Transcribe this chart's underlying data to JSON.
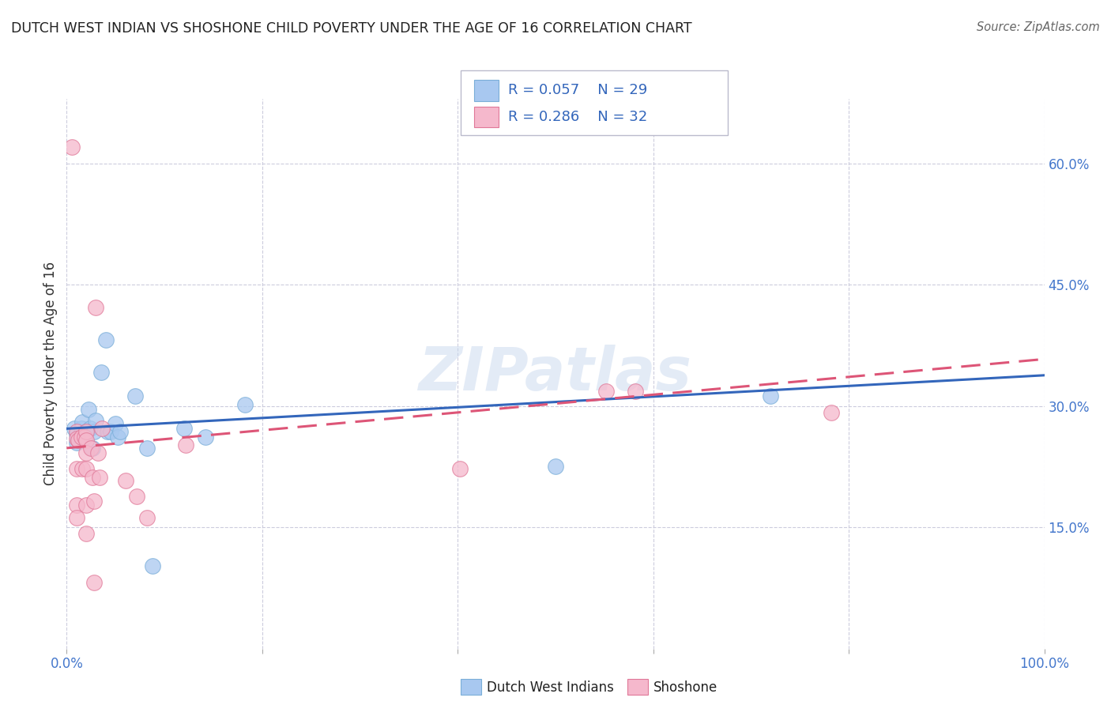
{
  "title": "DUTCH WEST INDIAN VS SHOSHONE CHILD POVERTY UNDER THE AGE OF 16 CORRELATION CHART",
  "source": "Source: ZipAtlas.com",
  "ylabel": "Child Poverty Under the Age of 16",
  "xlim": [
    0,
    1.0
  ],
  "ylim": [
    0,
    0.68
  ],
  "legend_r_blue": "0.057",
  "legend_n_blue": "29",
  "legend_r_pink": "0.286",
  "legend_n_pink": "32",
  "watermark": "ZIPatlas",
  "blue_color": "#a8c8f0",
  "blue_edge": "#7aaed8",
  "pink_color": "#f5b8cc",
  "pink_edge": "#e07898",
  "blue_scatter": [
    [
      0.008,
      0.272
    ],
    [
      0.01,
      0.265
    ],
    [
      0.01,
      0.255
    ],
    [
      0.012,
      0.26
    ],
    [
      0.013,
      0.258
    ],
    [
      0.015,
      0.272
    ],
    [
      0.016,
      0.28
    ],
    [
      0.018,
      0.262
    ],
    [
      0.02,
      0.268
    ],
    [
      0.022,
      0.296
    ],
    [
      0.024,
      0.272
    ],
    [
      0.026,
      0.248
    ],
    [
      0.028,
      0.268
    ],
    [
      0.03,
      0.282
    ],
    [
      0.035,
      0.342
    ],
    [
      0.04,
      0.382
    ],
    [
      0.042,
      0.268
    ],
    [
      0.045,
      0.268
    ],
    [
      0.05,
      0.278
    ],
    [
      0.052,
      0.262
    ],
    [
      0.055,
      0.268
    ],
    [
      0.07,
      0.312
    ],
    [
      0.082,
      0.248
    ],
    [
      0.088,
      0.102
    ],
    [
      0.12,
      0.272
    ],
    [
      0.142,
      0.262
    ],
    [
      0.182,
      0.302
    ],
    [
      0.5,
      0.225
    ],
    [
      0.72,
      0.312
    ]
  ],
  "pink_scatter": [
    [
      0.005,
      0.62
    ],
    [
      0.01,
      0.268
    ],
    [
      0.01,
      0.26
    ],
    [
      0.01,
      0.222
    ],
    [
      0.01,
      0.178
    ],
    [
      0.01,
      0.162
    ],
    [
      0.012,
      0.258
    ],
    [
      0.015,
      0.262
    ],
    [
      0.016,
      0.222
    ],
    [
      0.018,
      0.262
    ],
    [
      0.02,
      0.268
    ],
    [
      0.02,
      0.258
    ],
    [
      0.02,
      0.242
    ],
    [
      0.02,
      0.222
    ],
    [
      0.02,
      0.178
    ],
    [
      0.02,
      0.142
    ],
    [
      0.025,
      0.248
    ],
    [
      0.026,
      0.212
    ],
    [
      0.028,
      0.182
    ],
    [
      0.028,
      0.082
    ],
    [
      0.03,
      0.422
    ],
    [
      0.032,
      0.242
    ],
    [
      0.034,
      0.212
    ],
    [
      0.036,
      0.272
    ],
    [
      0.06,
      0.208
    ],
    [
      0.072,
      0.188
    ],
    [
      0.082,
      0.162
    ],
    [
      0.122,
      0.252
    ],
    [
      0.402,
      0.222
    ],
    [
      0.552,
      0.318
    ],
    [
      0.582,
      0.318
    ],
    [
      0.782,
      0.292
    ]
  ],
  "blue_line": [
    [
      0.0,
      0.272
    ],
    [
      1.0,
      0.338
    ]
  ],
  "pink_line": [
    [
      0.0,
      0.248
    ],
    [
      1.0,
      0.358
    ]
  ],
  "background_color": "#ffffff",
  "grid_color": "#ccccdd",
  "title_color": "#222222",
  "source_color": "#666666"
}
